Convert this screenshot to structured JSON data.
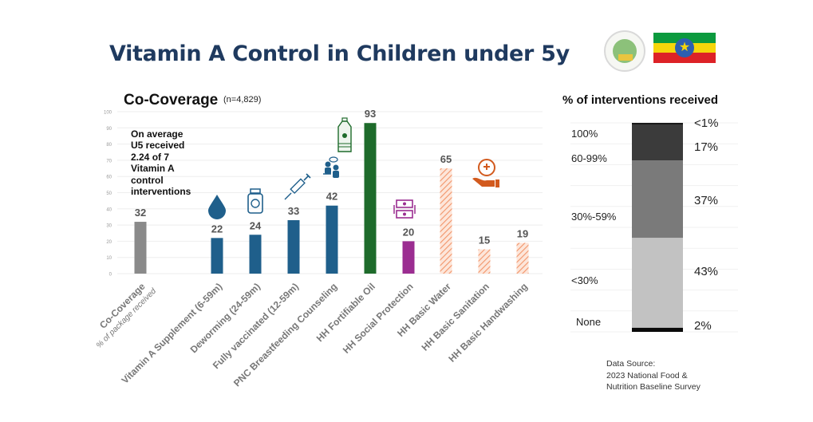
{
  "header": {
    "title": "Vitamin A Control in Children under 5y"
  },
  "left_panel": {
    "title": "Co-Coverage",
    "sample_note": "(n=4,829)",
    "annotation": [
      "On average",
      "U5 received",
      "2.24 of 7",
      "Vitamin A",
      "control",
      "interventions"
    ]
  },
  "right_panel": {
    "title": "% of interventions received",
    "source_lines": [
      "Data Source:",
      "2023 National Food &",
      "Nutrition Baseline Survey"
    ]
  },
  "colors": {
    "co_coverage": "#8a8a8a",
    "health": "#1f5f8b",
    "oil": "#1e6b2b",
    "social": "#9b2d91",
    "wash": "#f2a27a",
    "title": "#1f3a5f"
  },
  "chart_data": [
    {
      "type": "bar",
      "title": "Co-Coverage",
      "subtitle": "(n=4,829)",
      "xlabel": "",
      "ylabel": "",
      "ylim": [
        0,
        100
      ],
      "yticks": [
        0,
        10,
        20,
        30,
        40,
        50,
        60,
        70,
        80,
        90,
        100
      ],
      "grid": true,
      "categories": [
        "Co-Coverage",
        "Vitamin A Supplement (6-59m)",
        "Deworming (24-59m)",
        "Fully vaccinated (12-59m)",
        "PNC Breastfeeding Counseling",
        "HH Fortifiable Oil",
        "HH Social Protection",
        "HH Basic Water",
        "HH Basic Sanitation",
        "HH Basic Handwashing"
      ],
      "category_sublabels": [
        "% of package received",
        "",
        "",
        "",
        "",
        "",
        "",
        "",
        "",
        ""
      ],
      "values": [
        32,
        22,
        24,
        33,
        42,
        93,
        20,
        65,
        15,
        19
      ],
      "bar_groups": [
        "co_coverage",
        "health",
        "health",
        "health",
        "health",
        "oil",
        "social",
        "wash",
        "wash",
        "wash"
      ],
      "bar_icons": [
        "",
        "water-drop-icon",
        "pill-bottle-icon",
        "syringe-icon",
        "counseling-icon",
        "oil-bottle-icon",
        "cash-transfer-icon",
        "",
        "hand-care-icon",
        ""
      ]
    },
    {
      "type": "bar",
      "stacked": true,
      "title": "% of interventions received",
      "categories_bottom_to_top": [
        "None",
        "<30%",
        "30%-59%",
        "60-99%",
        "100%"
      ],
      "values": [
        2,
        43,
        37,
        17,
        1
      ],
      "value_labels": [
        "2%",
        "43%",
        "37%",
        "17%",
        "<1%"
      ],
      "segment_colors": [
        "#0a0a0a",
        "#c2c2c2",
        "#7a7a7a",
        "#3b3b3b",
        "#1a1a1a"
      ]
    }
  ]
}
